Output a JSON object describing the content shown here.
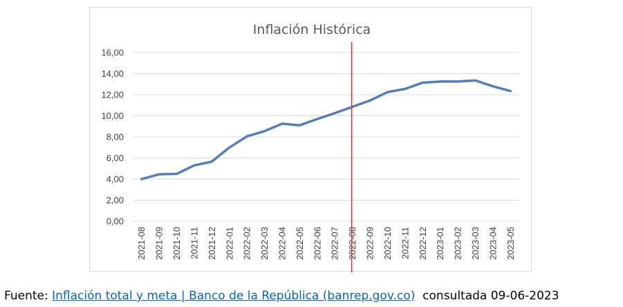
{
  "chart_data": {
    "type": "line",
    "title": "Inflación Histórica",
    "xlabel": "",
    "ylabel": "",
    "ylim": [
      0,
      16
    ],
    "yticks": [
      "0,00",
      "2,00",
      "4,00",
      "6,00",
      "8,00",
      "10,00",
      "12,00",
      "14,00",
      "16,00"
    ],
    "grid": true,
    "legend": "none",
    "categories": [
      "2021-08",
      "2021-09",
      "2021-10",
      "2021-11",
      "2021-12",
      "2022-01",
      "2022-02",
      "2022-03",
      "2022-04",
      "2022-05",
      "2022-06",
      "2022-07",
      "2022-08",
      "2022-09",
      "2022-10",
      "2022-11",
      "2022-12",
      "2023-01",
      "2023-02",
      "2023-03",
      "2023-04",
      "2023-05"
    ],
    "series": [
      {
        "values": [
          4.0,
          4.45,
          4.5,
          5.3,
          5.65,
          7.0,
          8.05,
          8.55,
          9.25,
          9.1,
          9.7,
          10.25,
          10.85,
          11.45,
          12.25,
          12.55,
          13.15,
          13.25,
          13.25,
          13.35,
          12.8,
          12.35
        ],
        "color": "#4f7ec0"
      }
    ],
    "marker_line": {
      "category": "2022-08",
      "color": "#e03030"
    }
  },
  "footer": {
    "prefix": "Fuente: ",
    "link_text": "Inflación total y meta | Banco de la República (banrep.gov.co)",
    "suffix": "  consultada 09-06-2023"
  }
}
